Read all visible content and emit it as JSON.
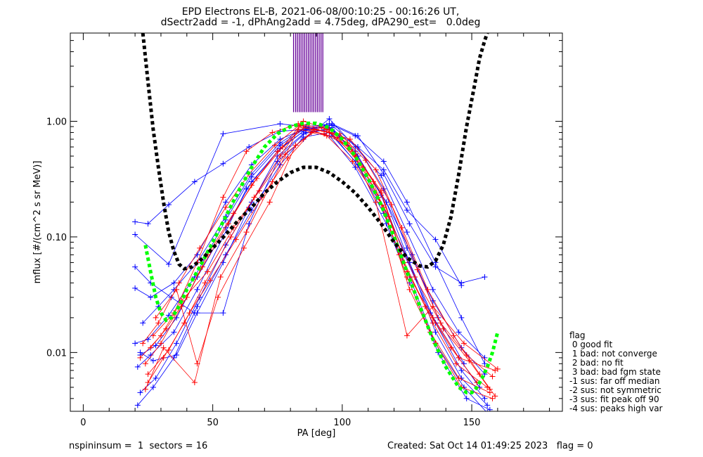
{
  "chart_data": {
    "type": "scatter",
    "title": "EPD Electrons EL-B, 2021-06-08/00:10:25 - 00:16:26 UT,",
    "subtitle": "dSectr2add = -1, dPhAng2add = 4.75deg, dPA290_est=   0.0deg",
    "xlabel": "PA [deg]",
    "ylabel": "mflux [#/(cm^2 s sr MeV)]",
    "xlim": [
      -5,
      185
    ],
    "ylim": [
      0.0031,
      5.8
    ],
    "yscale": "log",
    "x_ticks": [
      0,
      50,
      100,
      150
    ],
    "y_ticks": [
      {
        "value": 0.01,
        "label": "0.01"
      },
      {
        "value": 0.1,
        "label": "0.10"
      },
      {
        "value": 1.0,
        "label": "1.00"
      }
    ],
    "colors": {
      "blue": "#0000ff",
      "red": "#ff0000",
      "green": "#00ff00",
      "black": "#000000",
      "purple": "#660099"
    },
    "series": [
      {
        "color": "#0000ff",
        "style": "line-plus",
        "x": [
          20,
          25,
          33,
          43,
          55,
          65,
          76,
          86,
          95,
          106,
          116,
          125,
          135,
          146,
          155
        ],
        "y": [
          0.012,
          0.013,
          0.021,
          0.045,
          0.14,
          0.33,
          0.62,
          0.88,
          0.88,
          0.6,
          0.26,
          0.08,
          0.028,
          0.011,
          0.0065
        ]
      },
      {
        "color": "#0000ff",
        "style": "line-plus",
        "x": [
          21,
          26,
          35,
          44,
          54,
          63,
          75,
          85,
          94,
          105,
          115,
          124,
          134,
          145,
          153
        ],
        "y": [
          0.0075,
          0.0095,
          0.015,
          0.035,
          0.1,
          0.26,
          0.55,
          0.82,
          0.92,
          0.55,
          0.23,
          0.07,
          0.022,
          0.009,
          0.005
        ]
      },
      {
        "color": "#0000ff",
        "style": "line-plus",
        "x": [
          22,
          28,
          36,
          45,
          55,
          65,
          76,
          86,
          96,
          106,
          117,
          126,
          136,
          146,
          156
        ],
        "y": [
          0.0045,
          0.006,
          0.012,
          0.03,
          0.085,
          0.2,
          0.5,
          0.8,
          0.85,
          0.5,
          0.2,
          0.06,
          0.015,
          0.006,
          0.0035
        ]
      },
      {
        "color": "#0000ff",
        "style": "line-plus",
        "x": [
          20,
          25,
          33,
          43,
          54,
          64,
          76,
          86,
          96,
          106,
          116,
          125,
          136,
          146
        ],
        "y": [
          0.135,
          0.13,
          0.19,
          0.3,
          0.43,
          0.6,
          0.82,
          0.85,
          0.92,
          0.6,
          0.38,
          0.17,
          0.095,
          0.038
        ]
      },
      {
        "color": "#0000ff",
        "style": "line-plus",
        "x": [
          20,
          33,
          54,
          76,
          86,
          96,
          106,
          116,
          126,
          136,
          146,
          155
        ],
        "y": [
          0.105,
          0.058,
          0.78,
          0.95,
          0.9,
          0.95,
          0.75,
          0.35,
          0.13,
          0.055,
          0.04,
          0.045
        ]
      },
      {
        "color": "#0000ff",
        "style": "line-plus",
        "x": [
          20,
          26,
          35,
          44,
          55,
          65,
          76,
          85,
          95,
          105,
          116,
          125,
          136,
          146,
          155
        ],
        "y": [
          0.036,
          0.03,
          0.04,
          0.07,
          0.2,
          0.42,
          0.7,
          0.85,
          0.95,
          0.75,
          0.45,
          0.2,
          0.06,
          0.02,
          0.008
        ]
      },
      {
        "color": "#0000ff",
        "style": "line-plus",
        "x": [
          21,
          27,
          35,
          44,
          55,
          65,
          76,
          85,
          95,
          105,
          116,
          126,
          136,
          147,
          156
        ],
        "y": [
          0.0035,
          0.005,
          0.009,
          0.025,
          0.07,
          0.17,
          0.42,
          0.73,
          0.8,
          0.45,
          0.16,
          0.045,
          0.012,
          0.005,
          0.003
        ]
      },
      {
        "color": "#0000ff",
        "style": "line-plus",
        "x": [
          20,
          26,
          34,
          43,
          54,
          64,
          75,
          85,
          95,
          105,
          115,
          125,
          135,
          145,
          155
        ],
        "y": [
          0.055,
          0.04,
          0.03,
          0.022,
          0.022,
          0.13,
          0.45,
          0.7,
          1.05,
          0.6,
          0.34,
          0.11,
          0.035,
          0.015,
          0.009
        ]
      },
      {
        "color": "#0000ff",
        "style": "line-plus",
        "x": [
          22,
          28,
          36,
          44,
          55,
          65,
          76,
          86,
          95,
          105,
          117,
          126,
          137,
          148,
          157
        ],
        "y": [
          0.0095,
          0.0115,
          0.02,
          0.045,
          0.12,
          0.3,
          0.58,
          0.85,
          0.75,
          0.4,
          0.13,
          0.04,
          0.01,
          0.004,
          0.0032
        ]
      },
      {
        "color": "#0000ff",
        "style": "line-plus",
        "x": [
          23,
          29,
          35,
          44,
          55,
          65,
          76,
          86,
          96,
          106,
          116,
          126,
          136,
          146,
          155
        ],
        "y": [
          0.018,
          0.025,
          0.035,
          0.06,
          0.15,
          0.35,
          0.65,
          0.9,
          0.78,
          0.42,
          0.18,
          0.06,
          0.018,
          0.007,
          0.004
        ]
      },
      {
        "color": "#0000ff",
        "style": "line-plus",
        "x": [
          22,
          27,
          36,
          44,
          54,
          64,
          75,
          85,
          96,
          106,
          117,
          127,
          137,
          147
        ],
        "y": [
          0.01,
          0.0085,
          0.0095,
          0.022,
          0.06,
          0.18,
          0.5,
          0.78,
          0.88,
          0.5,
          0.2,
          0.07,
          0.02,
          0.008
        ]
      },
      {
        "color": "#ff0000",
        "style": "line-plus",
        "x": [
          23,
          29,
          37,
          45,
          55,
          64,
          74,
          84,
          94,
          104,
          115,
          124,
          135,
          144,
          156
        ],
        "y": [
          0.012,
          0.018,
          0.04,
          0.08,
          0.18,
          0.35,
          0.62,
          0.95,
          0.85,
          0.55,
          0.25,
          0.06,
          0.018,
          0.008,
          0.005
        ]
      },
      {
        "color": "#ff0000",
        "style": "line-plus",
        "x": [
          24,
          30,
          38,
          46,
          56,
          65,
          75,
          85,
          95,
          105,
          114,
          125,
          134,
          145,
          157
        ],
        "y": [
          0.008,
          0.012,
          0.025,
          0.055,
          0.13,
          0.28,
          0.55,
          0.88,
          0.8,
          0.5,
          0.22,
          0.045,
          0.015,
          0.006,
          0.0045
        ]
      },
      {
        "color": "#ff0000",
        "style": "line-plus",
        "x": [
          25,
          31,
          39,
          47,
          57,
          66,
          76,
          84,
          94,
          104,
          116,
          126,
          136,
          146,
          158
        ],
        "y": [
          0.0055,
          0.009,
          0.018,
          0.04,
          0.1,
          0.22,
          0.5,
          0.92,
          0.75,
          0.45,
          0.18,
          0.035,
          0.012,
          0.005,
          0.004
        ]
      },
      {
        "color": "#ff0000",
        "style": "line-plus",
        "x": [
          26,
          32,
          40,
          48,
          58,
          67,
          77,
          85,
          95,
          105,
          115,
          125,
          135,
          145,
          159
        ],
        "y": [
          0.011,
          0.016,
          0.03,
          0.07,
          0.16,
          0.32,
          0.6,
          1.0,
          0.85,
          0.52,
          0.24,
          0.05,
          0.02,
          0.009,
          0.007
        ]
      },
      {
        "color": "#ff0000",
        "style": "line-plus",
        "x": [
          24,
          31,
          43,
          53,
          63,
          73,
          83,
          93,
          103,
          113,
          125,
          135,
          147,
          160
        ],
        "y": [
          0.0048,
          0.011,
          0.0055,
          0.045,
          0.11,
          0.3,
          0.85,
          0.78,
          0.6,
          0.2,
          0.014,
          0.025,
          0.012,
          0.0072
        ]
      },
      {
        "color": "#ff0000",
        "style": "line-plus",
        "x": [
          27,
          35,
          44,
          54,
          63,
          73,
          83,
          93,
          103,
          113,
          123,
          133,
          143,
          153,
          159
        ],
        "y": [
          0.014,
          0.022,
          0.06,
          0.22,
          0.55,
          0.8,
          0.95,
          0.82,
          0.7,
          0.38,
          0.12,
          0.035,
          0.014,
          0.0065,
          0.0042
        ]
      },
      {
        "color": "#ff0000",
        "style": "line-plus",
        "x": [
          22,
          30,
          38,
          48,
          58,
          68,
          78,
          88,
          98,
          108,
          118,
          128,
          138,
          148,
          158
        ],
        "y": [
          0.009,
          0.014,
          0.028,
          0.05,
          0.12,
          0.25,
          0.52,
          0.8,
          0.72,
          0.4,
          0.15,
          0.045,
          0.018,
          0.0095,
          0.0062
        ]
      },
      {
        "color": "#ff0000",
        "style": "line-plus",
        "x": [
          28,
          36,
          44,
          52,
          62,
          72,
          82,
          92,
          102,
          112,
          122,
          132,
          142,
          152
        ],
        "y": [
          0.02,
          0.035,
          0.008,
          0.03,
          0.08,
          0.2,
          0.62,
          0.9,
          0.65,
          0.3,
          0.07,
          0.025,
          0.011,
          0.0055
        ]
      },
      {
        "color": "#ff0000",
        "style": "line-plus",
        "x": [
          25,
          33,
          41,
          49,
          59,
          69,
          79,
          89,
          99,
          109,
          119,
          129,
          139,
          149,
          157
        ],
        "y": [
          0.0065,
          0.0105,
          0.022,
          0.042,
          0.095,
          0.22,
          0.48,
          0.85,
          0.78,
          0.46,
          0.19,
          0.052,
          0.016,
          0.0085,
          0.0048
        ]
      },
      {
        "color": "#00ff00",
        "style": "dashed-thick",
        "x": [
          24,
          26,
          28,
          30,
          32,
          34,
          36,
          38,
          40,
          45,
          50,
          55,
          60,
          65,
          70,
          75,
          80,
          85,
          90,
          95,
          100,
          105,
          110,
          115,
          120,
          125,
          130,
          135,
          140,
          145,
          148,
          150,
          152,
          154,
          156,
          158,
          160
        ],
        "y": [
          0.085,
          0.05,
          0.03,
          0.022,
          0.019,
          0.02,
          0.023,
          0.028,
          0.035,
          0.055,
          0.09,
          0.15,
          0.25,
          0.4,
          0.6,
          0.78,
          0.9,
          0.96,
          0.96,
          0.88,
          0.7,
          0.5,
          0.32,
          0.19,
          0.1,
          0.05,
          0.025,
          0.013,
          0.0075,
          0.005,
          0.0045,
          0.0045,
          0.005,
          0.006,
          0.0075,
          0.01,
          0.015
        ]
      },
      {
        "color": "#000000",
        "style": "dashed-thick",
        "x": [
          23,
          25,
          27,
          29,
          31,
          33,
          35,
          37,
          39,
          42,
          46,
          50,
          55,
          60,
          65,
          70,
          75,
          80,
          85,
          90,
          95,
          100,
          105,
          110,
          115,
          120,
          125,
          130,
          133,
          136,
          139,
          142,
          145,
          148,
          151,
          153,
          155,
          156
        ],
        "y": [
          5.8,
          2.2,
          0.85,
          0.4,
          0.2,
          0.11,
          0.075,
          0.058,
          0.053,
          0.055,
          0.065,
          0.08,
          0.105,
          0.14,
          0.18,
          0.24,
          0.3,
          0.36,
          0.4,
          0.4,
          0.36,
          0.3,
          0.24,
          0.18,
          0.13,
          0.09,
          0.066,
          0.056,
          0.055,
          0.062,
          0.085,
          0.15,
          0.35,
          0.9,
          2.0,
          3.5,
          5.0,
          5.8
        ]
      }
    ],
    "vertical_marks": {
      "color": "#660099",
      "x": [
        81.2,
        82.0,
        82.7,
        83.4,
        84.1,
        84.8,
        85.5,
        86.2,
        86.9,
        87.6,
        88.3,
        89.0,
        89.7,
        90.4,
        91.1,
        91.8,
        92.5
      ],
      "y_from": 1.2,
      "y_to": 5.8
    },
    "legend": {
      "title": "flag",
      "placement": "outside-right-bottom",
      "entries": [
        " 0 good fit",
        " 1 bad: not converge",
        " 2 bad: no fit",
        " 3 bad: bad fgm state",
        "-1 sus: far off median",
        "-2 sus: not symmetric",
        "-3 sus: fit peak off 90",
        "-4 sus: peaks high var"
      ]
    },
    "footer": {
      "left": "nspininsum =  1  sectors = 16",
      "right": "Created: Sat Oct 14 01:49:25 2023   flag = 0"
    }
  }
}
